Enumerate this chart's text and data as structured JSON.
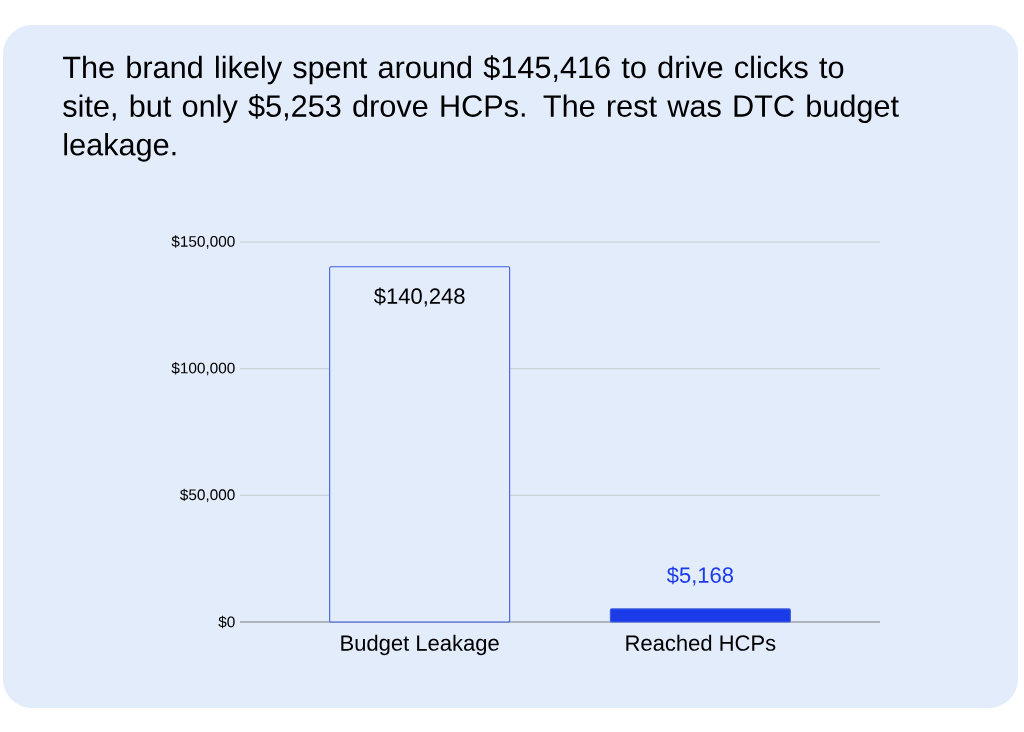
{
  "chart_data": {
    "type": "bar",
    "title": "The brand likely spent around $145,416 to drive clicks to site, but only $5,253 drove HCPs. The rest was DTC budget leakage.",
    "categories": [
      "Budget Leakage",
      "Reached HCPs"
    ],
    "values": [
      140248,
      5168
    ],
    "colors": [
      "#e3ecfb",
      "#1b3be8"
    ],
    "value_labels": [
      "$140,248",
      "$5,168"
    ],
    "ylim": [
      0,
      150000
    ],
    "yticks": [
      {
        "value": 0,
        "label": "$0"
      },
      {
        "value": 50000,
        "label": "$50,000"
      },
      {
        "value": 100000,
        "label": "$100,000"
      },
      {
        "value": 150000,
        "label": "$150,000"
      }
    ],
    "grid": "y"
  }
}
